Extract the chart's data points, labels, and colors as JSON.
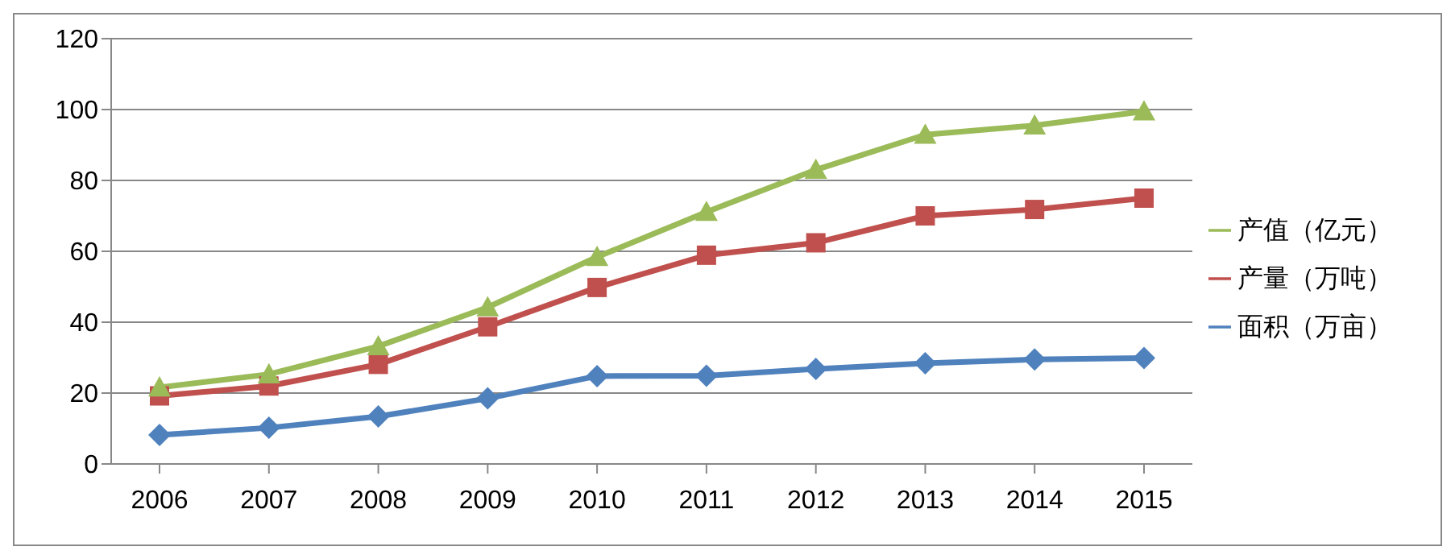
{
  "chart_data": {
    "type": "line",
    "categories": [
      "2006",
      "2007",
      "2008",
      "2009",
      "2010",
      "2011",
      "2012",
      "2013",
      "2014",
      "2015"
    ],
    "series": [
      {
        "name": "产值（亿元）",
        "color": "#9bbb59",
        "marker": "triangle",
        "values": [
          21.6,
          25.3,
          33.2,
          44.2,
          58.4,
          71.1,
          83,
          92.9,
          95.5,
          99.5
        ]
      },
      {
        "name": "产量（万吨）",
        "color": "#c0504d",
        "marker": "square",
        "values": [
          19.2,
          22,
          28.1,
          38.7,
          49.8,
          58.9,
          62.4,
          70,
          71.8,
          75
        ]
      },
      {
        "name": "面积（万亩）",
        "color": "#4f81bd",
        "marker": "diamond",
        "values": [
          8.2,
          10.2,
          13.4,
          18.5,
          24.8,
          24.9,
          26.8,
          28.4,
          29.5,
          29.9
        ]
      }
    ],
    "ylim": [
      0,
      120
    ],
    "yticks": [
      0,
      20,
      40,
      60,
      80,
      100,
      120
    ],
    "grid": "y",
    "legend": "right"
  }
}
